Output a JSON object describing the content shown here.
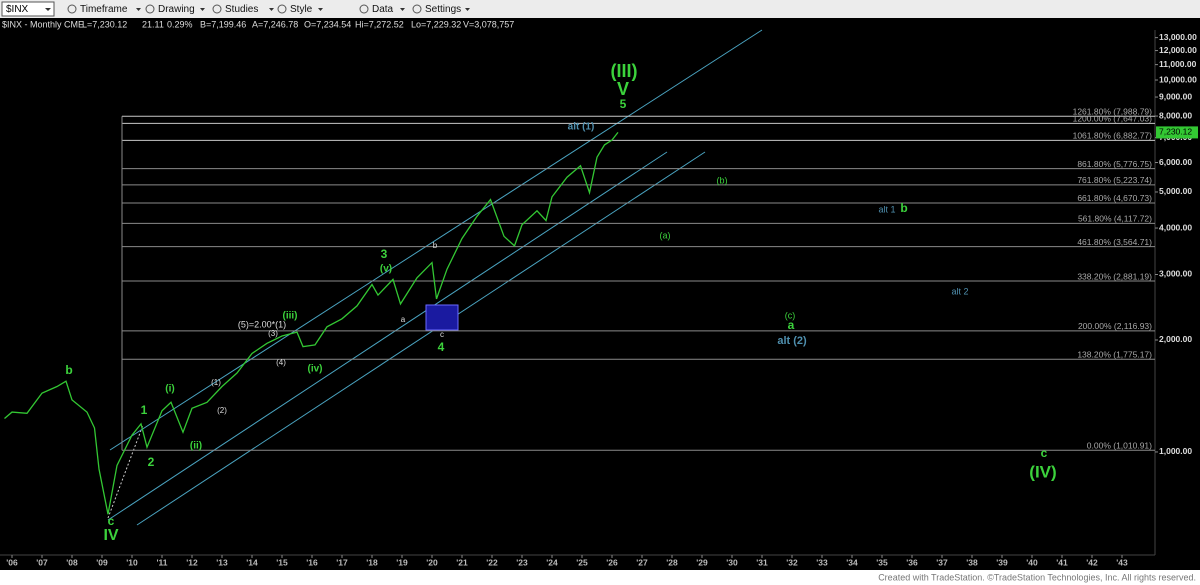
{
  "toolbar": {
    "symbol": "$INX",
    "menus": [
      "Timeframe",
      "Drawing",
      "Studies",
      "Style",
      "Data",
      "Settings"
    ]
  },
  "info": [
    "$INX - Monthly CME",
    "L=7,230.12",
    "21.11",
    "0.29%",
    "B=7,199.46",
    "A=7,246.78",
    "O=7,234.54",
    "Hi=7,272.52",
    "Lo=7,229.32",
    "V=3,078,757"
  ],
  "chart_data": {
    "type": "line",
    "ylog": true,
    "x": [
      2005.75,
      2006.0,
      2006.5,
      2007.0,
      2007.5,
      2007.8,
      2008.0,
      2008.5,
      2008.75,
      2008.9,
      2009.2,
      2009.5,
      2010.0,
      2010.3,
      2010.5,
      2011.0,
      2011.3,
      2011.7,
      2012.0,
      2012.5,
      2013.0,
      2013.5,
      2014.0,
      2014.5,
      2015.0,
      2015.5,
      2015.7,
      2016.1,
      2016.5,
      2017.0,
      2017.5,
      2018.0,
      2018.2,
      2018.7,
      2018.95,
      2019.5,
      2020.0,
      2020.15,
      2020.5,
      2021.0,
      2021.5,
      2021.95,
      2022.4,
      2022.75,
      2023.0,
      2023.5,
      2023.8,
      2024.0,
      2024.5,
      2024.95,
      2025.25,
      2025.5,
      2025.75,
      2026.0,
      2026.2
    ],
    "series": [
      {
        "name": "$INX",
        "color": "#33c733",
        "values": [
          1230,
          1280,
          1270,
          1440,
          1500,
          1550,
          1380,
          1280,
          1160,
          900,
          680,
          920,
          1110,
          1190,
          1030,
          1290,
          1360,
          1130,
          1310,
          1360,
          1500,
          1630,
          1840,
          1960,
          2050,
          2100,
          1920,
          1940,
          2170,
          2280,
          2470,
          2820,
          2640,
          2910,
          2500,
          2940,
          3230,
          2580,
          3100,
          3750,
          4300,
          4770,
          3800,
          3580,
          4080,
          4450,
          4190,
          4850,
          5480,
          5880,
          4980,
          6200,
          6690,
          6900,
          7230.12
        ]
      }
    ],
    "last": {
      "value": 7230.12,
      "label": "7,230.12"
    },
    "xlim": [
      2005.6,
      2044.1
    ],
    "ylim": [
      545,
      14500
    ],
    "xticks": [
      {
        "value": 2006,
        "label": "'06"
      },
      {
        "value": 2007,
        "label": "'07"
      },
      {
        "value": 2008,
        "label": "'08"
      },
      {
        "value": 2009,
        "label": "'09"
      },
      {
        "value": 2010,
        "label": "'10"
      },
      {
        "value": 2011,
        "label": "'11"
      },
      {
        "value": 2012,
        "label": "'12"
      },
      {
        "value": 2013,
        "label": "'13"
      },
      {
        "value": 2014,
        "label": "'14"
      },
      {
        "value": 2015,
        "label": "'15"
      },
      {
        "value": 2016,
        "label": "'16"
      },
      {
        "value": 2017,
        "label": "'17"
      },
      {
        "value": 2018,
        "label": "'18"
      },
      {
        "value": 2019,
        "label": "'19"
      },
      {
        "value": 2020,
        "label": "'20"
      },
      {
        "value": 2021,
        "label": "'21"
      },
      {
        "value": 2022,
        "label": "'22"
      },
      {
        "value": 2023,
        "label": "'23"
      },
      {
        "value": 2024,
        "label": "'24"
      },
      {
        "value": 2025,
        "label": "'25"
      },
      {
        "value": 2026,
        "label": "'26"
      },
      {
        "value": 2027,
        "label": "'27"
      },
      {
        "value": 2028,
        "label": "'28"
      },
      {
        "value": 2029,
        "label": "'29"
      },
      {
        "value": 2030,
        "label": "'30"
      },
      {
        "value": 2031,
        "label": "'31"
      },
      {
        "value": 2032,
        "label": "'32"
      },
      {
        "value": 2033,
        "label": "'33"
      },
      {
        "value": 2034,
        "label": "'34"
      },
      {
        "value": 2035,
        "label": "'35"
      },
      {
        "value": 2036,
        "label": "'36"
      },
      {
        "value": 2037,
        "label": "'37"
      },
      {
        "value": 2038,
        "label": "'38"
      },
      {
        "value": 2039,
        "label": "'39"
      },
      {
        "value": 2040,
        "label": "'40"
      },
      {
        "value": 2041,
        "label": "'41"
      },
      {
        "value": 2042,
        "label": "'42"
      },
      {
        "value": 2043,
        "label": "'43"
      }
    ],
    "yticks": [
      {
        "value": 1000,
        "label": "1,000.00"
      },
      {
        "value": 2000,
        "label": "2,000.00"
      },
      {
        "value": 3000,
        "label": "3,000.00"
      },
      {
        "value": 4000,
        "label": "4,000.00"
      },
      {
        "value": 5000,
        "label": "5,000.00"
      },
      {
        "value": 6000,
        "label": "6,000.00"
      },
      {
        "value": 7000,
        "label": "7,000.00"
      },
      {
        "value": 8000,
        "label": "8,000.00"
      },
      {
        "value": 9000,
        "label": "9,000.00"
      },
      {
        "value": 10000,
        "label": "10,000.00"
      },
      {
        "value": 11000,
        "label": "11,000.00"
      },
      {
        "value": 12000,
        "label": "12,000.00"
      },
      {
        "value": 13000,
        "label": "13,000.00"
      }
    ],
    "levels": [
      {
        "value": 7988.79,
        "label": "1261.80% (7,988.79)"
      },
      {
        "value": 7647.03,
        "label": "1200.00% (7,647.03)"
      },
      {
        "value": 6882.77,
        "label": "1061.80% (6,882.77)"
      },
      {
        "value": 5776.75,
        "label": "861.80% (5,776.75)"
      },
      {
        "value": 5223.74,
        "label": "761.80% (5,223.74)"
      },
      {
        "value": 4670.73,
        "label": "661.80% (4,670.73)"
      },
      {
        "value": 4117.72,
        "label": "561.80% (4,117.72)"
      },
      {
        "value": 3564.71,
        "label": "461.80% (3,564.71)"
      },
      {
        "value": 2881.19,
        "label": "338.20% (2,881.19)"
      },
      {
        "value": 2116.93,
        "label": "200.00% (2,116.93)"
      },
      {
        "value": 1775.17,
        "label": "138.20% (1,775.17)"
      },
      {
        "value": 1010.91,
        "label": "0.00% (1,010.91)"
      }
    ],
    "annotations": [
      {
        "text": "(III)",
        "color": "#3cd23c"
      },
      {
        "text": "V",
        "color": "#3cd23c"
      },
      {
        "text": "5",
        "color": "#3cd23c"
      },
      {
        "text": "alt (1)",
        "color": "#4f8fae"
      },
      {
        "text": "(b)",
        "color": "#3cd23c"
      },
      {
        "text": "alt 1",
        "color": "#4f8fae"
      },
      {
        "text": "b",
        "color": "#3cd23c"
      },
      {
        "text": "(a)",
        "color": "#3cd23c"
      },
      {
        "text": "alt 2",
        "color": "#4f8fae"
      },
      {
        "text": "(c)",
        "color": "#3cd23c"
      },
      {
        "text": "a",
        "color": "#3cd23c"
      },
      {
        "text": "alt (2)",
        "color": "#4f8fae"
      },
      {
        "text": "c",
        "color": "#3cd23c"
      },
      {
        "text": "(IV)",
        "color": "#3cd23c"
      },
      {
        "text": "3",
        "color": "#3cd23c"
      },
      {
        "text": "(v)",
        "color": "#3cd23c"
      },
      {
        "text": "b",
        "color": "#dddddd"
      },
      {
        "text": "a",
        "color": "#dddddd"
      },
      {
        "text": "c",
        "color": "#dddddd"
      },
      {
        "text": "4",
        "color": "#3cd23c"
      },
      {
        "text": "(5)=2.00*(1)",
        "color": "#dddddd"
      },
      {
        "text": "(iii)",
        "color": "#3cd23c"
      },
      {
        "text": "(3)",
        "color": "#dddddd"
      },
      {
        "text": "(iv)",
        "color": "#3cd23c"
      },
      {
        "text": "(4)",
        "color": "#dddddd"
      },
      {
        "text": "b",
        "color": "#3cd23c"
      },
      {
        "text": "(i)",
        "color": "#3cd23c"
      },
      {
        "text": "(1)",
        "color": "#dddddd"
      },
      {
        "text": "1",
        "color": "#3cd23c"
      },
      {
        "text": "(2)",
        "color": "#dddddd"
      },
      {
        "text": "2",
        "color": "#3cd23c"
      },
      {
        "text": "(ii)",
        "color": "#3cd23c"
      },
      {
        "text": "c",
        "color": "#3cd23c"
      },
      {
        "text": "IV",
        "color": "#3cd23c"
      }
    ]
  },
  "footer": "Created with TradeStation. ©TradeStation Technologies, Inc. All rights reserved."
}
